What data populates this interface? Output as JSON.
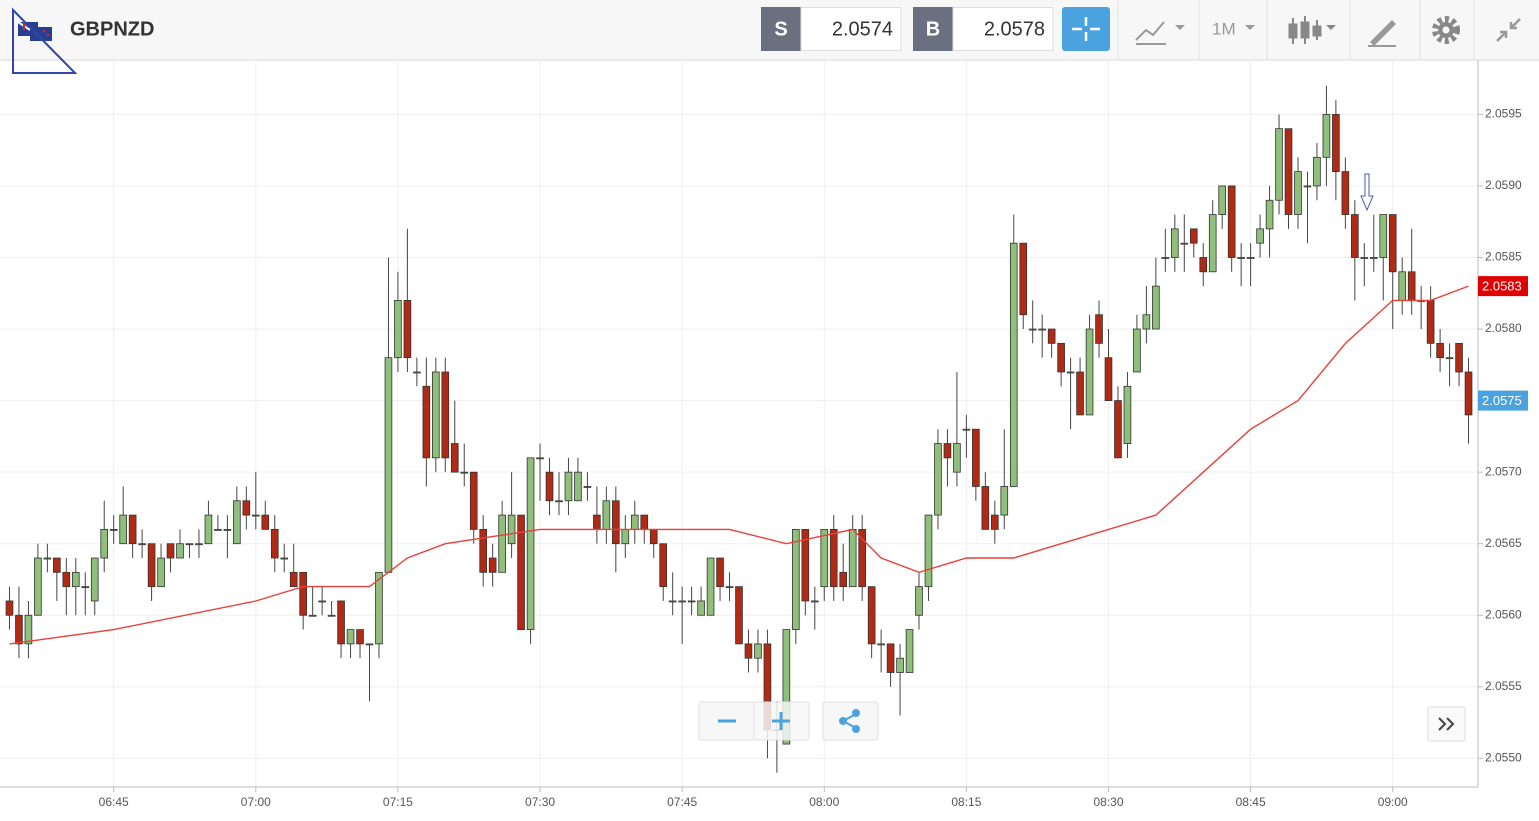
{
  "toolbar": {
    "symbol": "GBPNZD",
    "sell_label": "S",
    "sell": 2.0574,
    "buy_label": "B",
    "buy": 2.0578,
    "timeframe": "1M"
  },
  "chart_data": {
    "type": "candlestick",
    "x": [
      "06:34",
      "06:35",
      "06:36",
      "06:37",
      "06:38",
      "06:39",
      "06:40",
      "06:41",
      "06:42",
      "06:43",
      "06:44",
      "06:45",
      "06:46",
      "06:47",
      "06:48",
      "06:49",
      "06:50",
      "06:51",
      "06:52",
      "06:53",
      "06:54",
      "06:55",
      "06:56",
      "06:57",
      "06:58",
      "06:59",
      "07:00",
      "07:01",
      "07:02",
      "07:03",
      "07:04",
      "07:05",
      "07:06",
      "07:07",
      "07:08",
      "07:09",
      "07:10",
      "07:11",
      "07:12",
      "07:13",
      "07:14",
      "07:15",
      "07:16",
      "07:17",
      "07:18",
      "07:19",
      "07:20",
      "07:21",
      "07:22",
      "07:23",
      "07:24",
      "07:25",
      "07:26",
      "07:27",
      "07:28",
      "07:29",
      "07:30",
      "07:31",
      "07:32",
      "07:33",
      "07:34",
      "07:35",
      "07:36",
      "07:37",
      "07:38",
      "07:39",
      "07:40",
      "07:41",
      "07:42",
      "07:43",
      "07:44",
      "07:45",
      "07:46",
      "07:47",
      "07:48",
      "07:49",
      "07:50",
      "07:51",
      "07:52",
      "07:53",
      "07:54",
      "07:55",
      "07:56",
      "07:57",
      "07:58",
      "07:59",
      "08:00",
      "08:01",
      "08:02",
      "08:03",
      "08:04",
      "08:05",
      "08:06",
      "08:07",
      "08:08",
      "08:09",
      "08:10",
      "08:11",
      "08:12",
      "08:13",
      "08:14",
      "08:15",
      "08:16",
      "08:17",
      "08:18",
      "08:19",
      "08:20",
      "08:21",
      "08:22",
      "08:23",
      "08:24",
      "08:25",
      "08:26",
      "08:27",
      "08:28",
      "08:29",
      "08:30",
      "08:31",
      "08:32",
      "08:33",
      "08:34",
      "08:35",
      "08:36",
      "08:37",
      "08:38",
      "08:39",
      "08:40",
      "08:41",
      "08:42",
      "08:43",
      "08:44",
      "08:45",
      "08:46",
      "08:47",
      "08:48",
      "08:49",
      "08:50",
      "08:51",
      "08:52",
      "08:53",
      "08:54",
      "08:55",
      "08:56",
      "08:57",
      "08:58",
      "08:59",
      "09:00",
      "09:01",
      "09:02",
      "09:03",
      "09:04",
      "09:05",
      "09:06",
      "09:07",
      "09:08"
    ],
    "open": [
      2.0561,
      2.056,
      2.0558,
      2.056,
      2.0564,
      2.0564,
      2.0563,
      2.0562,
      2.0562,
      2.0561,
      2.0564,
      2.0566,
      2.0565,
      2.0567,
      2.0565,
      2.0565,
      2.0562,
      2.0565,
      2.0564,
      2.0565,
      2.0565,
      2.0565,
      2.0566,
      2.0566,
      2.0565,
      2.0568,
      2.0567,
      2.0567,
      2.0566,
      2.0564,
      2.0563,
      2.0563,
      2.056,
      2.0561,
      2.056,
      2.0561,
      2.0558,
      2.0559,
      2.0558,
      2.0558,
      2.0563,
      2.0578,
      2.0582,
      2.0577,
      2.0576,
      2.0571,
      2.0577,
      2.0572,
      2.057,
      2.057,
      2.0566,
      2.0564,
      2.0563,
      2.0565,
      2.0567,
      2.0559,
      2.0571,
      2.057,
      2.0568,
      2.0568,
      2.0568,
      2.0569,
      2.0567,
      2.0566,
      2.0568,
      2.0565,
      2.0566,
      2.0567,
      2.0566,
      2.0565,
      2.0561,
      2.0561,
      2.0561,
      2.056,
      2.056,
      2.0564,
      2.0562,
      2.0562,
      2.0558,
      2.0557,
      2.0558,
      2.0552,
      2.0551,
      2.0559,
      2.0566,
      2.0561,
      2.0562,
      2.0566,
      2.0563,
      2.0562,
      2.0566,
      2.0562,
      2.0558,
      2.0558,
      2.0556,
      2.0556,
      2.056,
      2.0562,
      2.0567,
      2.0572,
      2.057,
      2.0573,
      2.0573,
      2.0569,
      2.0567,
      2.0567,
      2.0569,
      2.0586,
      2.058,
      2.058,
      2.058,
      2.0579,
      2.0577,
      2.0577,
      2.0574,
      2.0581,
      2.0578,
      2.0575,
      2.0572,
      2.0577,
      2.058,
      2.058,
      2.0585,
      2.0585,
      2.0586,
      2.0587,
      2.0585,
      2.0584,
      2.0588,
      2.059,
      2.0585,
      2.0585,
      2.0586,
      2.0587,
      2.0589,
      2.0594,
      2.0588,
      2.059,
      2.059,
      2.0592,
      2.0595,
      2.0591,
      2.0588,
      2.0585,
      2.0585,
      2.0585,
      2.0588,
      2.0582,
      2.0584,
      2.0582,
      2.0582,
      2.0579,
      2.0578,
      2.0579,
      2.0577
    ],
    "high": [
      2.0562,
      2.0562,
      2.0561,
      2.0565,
      2.0565,
      2.0564,
      2.0564,
      2.0564,
      2.0563,
      2.0564,
      2.0568,
      2.0567,
      2.0569,
      2.0567,
      2.0566,
      2.0565,
      2.0565,
      2.0565,
      2.0566,
      2.0565,
      2.0566,
      2.0568,
      2.0567,
      2.0567,
      2.0569,
      2.0569,
      2.057,
      2.0568,
      2.0567,
      2.0565,
      2.0565,
      2.0563,
      2.0562,
      2.0562,
      2.0561,
      2.0561,
      2.0559,
      2.0559,
      2.0558,
      2.0563,
      2.0585,
      2.0584,
      2.0587,
      2.0578,
      2.0578,
      2.0578,
      2.0578,
      2.0575,
      2.0572,
      2.057,
      2.0567,
      2.0565,
      2.0568,
      2.057,
      2.0567,
      2.0571,
      2.0572,
      2.0571,
      2.057,
      2.0571,
      2.0571,
      2.057,
      2.0569,
      2.0569,
      2.0569,
      2.0567,
      2.0568,
      2.0567,
      2.0566,
      2.0565,
      2.0563,
      2.0562,
      2.0562,
      2.0562,
      2.0564,
      2.0564,
      2.0563,
      2.0562,
      2.0559,
      2.0559,
      2.0559,
      2.0554,
      2.0559,
      2.0566,
      2.0566,
      2.0562,
      2.0566,
      2.0567,
      2.0565,
      2.0567,
      2.0567,
      2.0562,
      2.0559,
      2.0558,
      2.0558,
      2.0559,
      2.0563,
      2.0567,
      2.0573,
      2.0573,
      2.0577,
      2.0574,
      2.0573,
      2.057,
      2.0568,
      2.0573,
      2.0588,
      2.0586,
      2.0582,
      2.0581,
      2.058,
      2.0579,
      2.0578,
      2.0578,
      2.0581,
      2.0582,
      2.058,
      2.0576,
      2.0577,
      2.0581,
      2.0583,
      2.0585,
      2.0587,
      2.0588,
      2.0588,
      2.0587,
      2.0586,
      2.0589,
      2.059,
      2.059,
      2.0586,
      2.0586,
      2.0588,
      2.059,
      2.0595,
      2.0594,
      2.0592,
      2.0591,
      2.0593,
      2.0597,
      2.0596,
      2.0592,
      2.0589,
      2.0586,
      2.0588,
      2.0588,
      2.0588,
      2.0585,
      2.0587,
      2.0583,
      2.0583,
      2.058,
      2.0579,
      2.0579,
      2.0578
    ],
    "low": [
      2.0559,
      2.0557,
      2.0557,
      2.056,
      2.0563,
      2.0561,
      2.056,
      2.056,
      2.056,
      2.056,
      2.0563,
      2.0565,
      2.0565,
      2.0564,
      2.0564,
      2.0561,
      2.0562,
      2.0563,
      2.0564,
      2.0564,
      2.0564,
      2.0565,
      2.0566,
      2.0564,
      2.0565,
      2.0566,
      2.0566,
      2.0566,
      2.0563,
      2.0563,
      2.0562,
      2.0559,
      2.056,
      2.056,
      2.056,
      2.0557,
      2.0557,
      2.0557,
      2.0554,
      2.0557,
      2.0563,
      2.0577,
      2.0577,
      2.0576,
      2.0569,
      2.057,
      2.057,
      2.057,
      2.0569,
      2.0565,
      2.0562,
      2.0562,
      2.0563,
      2.0564,
      2.0559,
      2.0558,
      2.0568,
      2.0567,
      2.0567,
      2.0567,
      2.0568,
      2.0568,
      2.0565,
      2.0565,
      2.0563,
      2.0564,
      2.0565,
      2.0565,
      2.0564,
      2.0561,
      2.056,
      2.0558,
      2.056,
      2.056,
      2.056,
      2.0561,
      2.0561,
      2.0558,
      2.0556,
      2.0556,
      2.055,
      2.0549,
      2.0551,
      2.0558,
      2.056,
      2.0559,
      2.0561,
      2.0561,
      2.0561,
      2.0562,
      2.0561,
      2.0557,
      2.0556,
      2.0555,
      2.0553,
      2.0556,
      2.0559,
      2.0561,
      2.0566,
      2.0569,
      2.0569,
      2.0571,
      2.0568,
      2.0566,
      2.0565,
      2.0566,
      2.0569,
      2.058,
      2.0579,
      2.0578,
      2.0578,
      2.0576,
      2.0573,
      2.0574,
      2.0574,
      2.0578,
      2.0575,
      2.0571,
      2.0571,
      2.0577,
      2.0579,
      2.058,
      2.0584,
      2.0584,
      2.0584,
      2.0585,
      2.0583,
      2.0584,
      2.0587,
      2.0584,
      2.0583,
      2.0583,
      2.0585,
      2.0585,
      2.0588,
      2.0587,
      2.0587,
      2.0586,
      2.0589,
      2.059,
      2.0589,
      2.0587,
      2.0582,
      2.0583,
      2.0584,
      2.0582,
      2.058,
      2.0581,
      2.0581,
      2.058,
      2.0578,
      2.0577,
      2.0576,
      2.0576,
      2.0572
    ],
    "close": [
      2.056,
      2.0558,
      2.056,
      2.0564,
      2.0564,
      2.0563,
      2.0562,
      2.0563,
      2.0562,
      2.0564,
      2.0566,
      2.0566,
      2.0567,
      2.0565,
      2.0565,
      2.0562,
      2.0564,
      2.0564,
      2.0565,
      2.0565,
      2.0565,
      2.0567,
      2.0566,
      2.0566,
      2.0568,
      2.0567,
      2.0567,
      2.0566,
      2.0564,
      2.0564,
      2.0562,
      2.056,
      2.056,
      2.0561,
      2.056,
      2.0558,
      2.0559,
      2.0558,
      2.0558,
      2.0563,
      2.0578,
      2.0582,
      2.0578,
      2.0577,
      2.0571,
      2.0577,
      2.0571,
      2.057,
      2.057,
      2.0566,
      2.0563,
      2.0563,
      2.0567,
      2.0567,
      2.0559,
      2.0571,
      2.0571,
      2.0568,
      2.0568,
      2.057,
      2.057,
      2.0569,
      2.0566,
      2.0568,
      2.0565,
      2.0566,
      2.0567,
      2.0566,
      2.0565,
      2.0562,
      2.0561,
      2.0561,
      2.0561,
      2.0561,
      2.0564,
      2.0562,
      2.0562,
      2.0558,
      2.0557,
      2.0558,
      2.0552,
      2.0552,
      2.0559,
      2.0566,
      2.0561,
      2.0561,
      2.0566,
      2.0562,
      2.0562,
      2.0566,
      2.0562,
      2.0558,
      2.0558,
      2.0556,
      2.0557,
      2.0559,
      2.0562,
      2.0567,
      2.0572,
      2.0571,
      2.0572,
      2.0573,
      2.0569,
      2.0566,
      2.0566,
      2.0569,
      2.0586,
      2.0581,
      2.058,
      2.058,
      2.0579,
      2.0577,
      2.0577,
      2.0574,
      2.058,
      2.0579,
      2.0575,
      2.0571,
      2.0576,
      2.058,
      2.0581,
      2.0583,
      2.0585,
      2.0587,
      2.0586,
      2.0586,
      2.0584,
      2.0588,
      2.059,
      2.0585,
      2.0585,
      2.0585,
      2.0587,
      2.0589,
      2.0594,
      2.0588,
      2.0591,
      2.059,
      2.0592,
      2.0595,
      2.0591,
      2.0588,
      2.0585,
      2.0585,
      2.0585,
      2.0588,
      2.0584,
      2.0584,
      2.0582,
      2.0582,
      2.0579,
      2.0578,
      2.0578,
      2.0577,
      2.0574
    ],
    "up_color": "#8fbf7a",
    "down_color": "#b02a14",
    "moving_average": {
      "color": "#e8413c",
      "x": [
        "06:34",
        "06:45",
        "07:00",
        "07:05",
        "07:12",
        "07:16",
        "07:20",
        "07:30",
        "07:45",
        "07:50",
        "07:56",
        "08:03",
        "08:06",
        "08:10",
        "08:15",
        "08:20",
        "08:25",
        "08:30",
        "08:35",
        "08:40",
        "08:45",
        "08:50",
        "08:55",
        "09:00",
        "09:04",
        "09:08"
      ],
      "values": [
        2.0558,
        2.0559,
        2.0561,
        2.0562,
        2.0562,
        2.0564,
        2.0565,
        2.0566,
        2.0566,
        2.0566,
        2.0565,
        2.0566,
        2.0564,
        2.0563,
        2.0564,
        2.0564,
        2.0565,
        2.0566,
        2.0567,
        2.057,
        2.0573,
        2.0575,
        2.0579,
        2.0582,
        2.0582,
        2.0583
      ]
    },
    "xlim": [
      "06:33",
      "09:09"
    ],
    "xticks": [
      "06:45",
      "07:00",
      "07:15",
      "07:30",
      "07:45",
      "08:00",
      "08:15",
      "08:30",
      "08:45",
      "09:00"
    ],
    "ylim": [
      2.0548,
      2.05988
    ],
    "yticks": [
      {
        "value": 2.055,
        "label": "2.0550"
      },
      {
        "value": 2.0555,
        "label": "2.0555"
      },
      {
        "value": 2.056,
        "label": "2.0560"
      },
      {
        "value": 2.0565,
        "label": "2.0565"
      },
      {
        "value": 2.057,
        "label": "2.0570"
      },
      {
        "value": 2.0575,
        "label": "2.0575"
      },
      {
        "value": 2.058,
        "label": "2.0580"
      },
      {
        "value": 2.0585,
        "label": "2.0585"
      },
      {
        "value": 2.059,
        "label": "2.0590"
      },
      {
        "value": 2.0595,
        "label": "2.0595"
      }
    ],
    "grid": true,
    "price_markers": [
      {
        "value": 2.0583,
        "color": "#e00000"
      },
      {
        "value": 2.0575,
        "color": "#4aa3df"
      }
    ]
  }
}
